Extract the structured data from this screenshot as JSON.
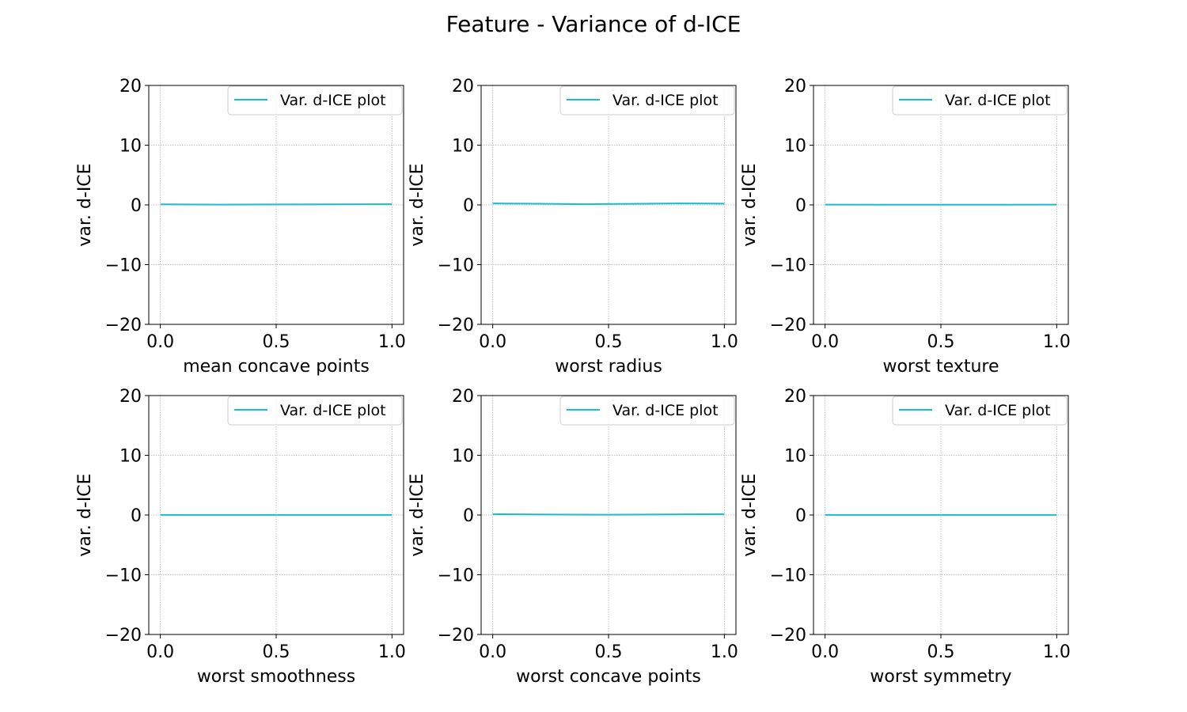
{
  "figure": {
    "title": "Feature - Variance of d-ICE"
  },
  "chart_data": [
    {
      "type": "line",
      "xlabel": "mean concave points",
      "ylabel": "var. d-ICE",
      "xlim": [
        -0.05,
        1.05
      ],
      "ylim": [
        -20,
        20
      ],
      "xticks": [
        "0.0",
        "0.5",
        "1.0"
      ],
      "xtick_values": [
        0,
        0.5,
        1
      ],
      "yticks": [
        "20",
        "10",
        "0",
        "−10",
        "−20"
      ],
      "ytick_values": [
        20,
        10,
        0,
        -10,
        -20
      ],
      "grid": true,
      "legend_position": "upper right",
      "series": [
        {
          "name": "Var. d-ICE plot",
          "color": "#17becf",
          "x": [
            0,
            0.25,
            0.5,
            0.75,
            1.0
          ],
          "y": [
            0.1,
            0.05,
            0.08,
            0.1,
            0.12
          ]
        }
      ]
    },
    {
      "type": "line",
      "xlabel": "worst radius",
      "ylabel": "var. d-ICE",
      "xlim": [
        -0.05,
        1.05
      ],
      "ylim": [
        -20,
        20
      ],
      "xticks": [
        "0.0",
        "0.5",
        "1.0"
      ],
      "xtick_values": [
        0,
        0.5,
        1
      ],
      "yticks": [
        "20",
        "10",
        "0",
        "−10",
        "−20"
      ],
      "ytick_values": [
        20,
        10,
        0,
        -10,
        -20
      ],
      "grid": true,
      "legend_position": "upper right",
      "series": [
        {
          "name": "Var. d-ICE plot",
          "color": "#17becf",
          "x": [
            0,
            0.2,
            0.4,
            0.6,
            0.8,
            1.0
          ],
          "y": [
            0.25,
            0.2,
            0.12,
            0.18,
            0.25,
            0.22
          ]
        }
      ]
    },
    {
      "type": "line",
      "xlabel": "worst texture",
      "ylabel": "var. d-ICE",
      "xlim": [
        -0.05,
        1.05
      ],
      "ylim": [
        -20,
        20
      ],
      "xticks": [
        "0.0",
        "0.5",
        "1.0"
      ],
      "xtick_values": [
        0,
        0.5,
        1
      ],
      "yticks": [
        "20",
        "10",
        "0",
        "−10",
        "−20"
      ],
      "ytick_values": [
        20,
        10,
        0,
        -10,
        -20
      ],
      "grid": true,
      "legend_position": "upper right",
      "series": [
        {
          "name": "Var. d-ICE plot",
          "color": "#17becf",
          "x": [
            0,
            0.25,
            0.5,
            0.75,
            1.0
          ],
          "y": [
            0.05,
            0.04,
            0.03,
            0.04,
            0.05
          ]
        }
      ]
    },
    {
      "type": "line",
      "xlabel": "worst smoothness",
      "ylabel": "var. d-ICE",
      "xlim": [
        -0.05,
        1.05
      ],
      "ylim": [
        -20,
        20
      ],
      "xticks": [
        "0.0",
        "0.5",
        "1.0"
      ],
      "xtick_values": [
        0,
        0.5,
        1
      ],
      "yticks": [
        "20",
        "10",
        "0",
        "−10",
        "−20"
      ],
      "ytick_values": [
        20,
        10,
        0,
        -10,
        -20
      ],
      "grid": true,
      "legend_position": "upper right",
      "series": [
        {
          "name": "Var. d-ICE plot",
          "color": "#17becf",
          "x": [
            0,
            0.25,
            0.5,
            0.75,
            1.0
          ],
          "y": [
            0.02,
            0.02,
            0.02,
            0.02,
            0.02
          ]
        }
      ]
    },
    {
      "type": "line",
      "xlabel": "worst concave points",
      "ylabel": "var. d-ICE",
      "xlim": [
        -0.05,
        1.05
      ],
      "ylim": [
        -20,
        20
      ],
      "xticks": [
        "0.0",
        "0.5",
        "1.0"
      ],
      "xtick_values": [
        0,
        0.5,
        1
      ],
      "yticks": [
        "20",
        "10",
        "0",
        "−10",
        "−20"
      ],
      "ytick_values": [
        20,
        10,
        0,
        -10,
        -20
      ],
      "grid": true,
      "legend_position": "upper right",
      "series": [
        {
          "name": "Var. d-ICE plot",
          "color": "#17becf",
          "x": [
            0,
            0.25,
            0.5,
            0.75,
            1.0
          ],
          "y": [
            0.15,
            0.08,
            0.05,
            0.1,
            0.15
          ]
        }
      ]
    },
    {
      "type": "line",
      "xlabel": "worst symmetry",
      "ylabel": "var. d-ICE",
      "xlim": [
        -0.05,
        1.05
      ],
      "ylim": [
        -20,
        20
      ],
      "xticks": [
        "0.0",
        "0.5",
        "1.0"
      ],
      "xtick_values": [
        0,
        0.5,
        1
      ],
      "yticks": [
        "20",
        "10",
        "0",
        "−10",
        "−20"
      ],
      "ytick_values": [
        20,
        10,
        0,
        -10,
        -20
      ],
      "grid": true,
      "legend_position": "upper right",
      "series": [
        {
          "name": "Var. d-ICE plot",
          "color": "#17becf",
          "x": [
            0,
            0.25,
            0.5,
            0.75,
            1.0
          ],
          "y": [
            0.02,
            0.02,
            0.02,
            0.02,
            0.02
          ]
        }
      ]
    }
  ]
}
